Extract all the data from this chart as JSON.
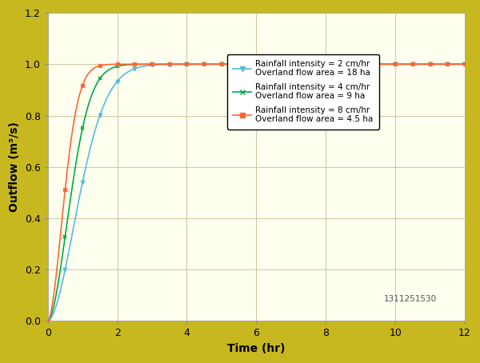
{
  "background_color": "#c8b820",
  "plot_bg_color": "#fffff0",
  "grid_color": "#c8c8a0",
  "xlabel": "Time (hr)",
  "ylabel": "Outflow (m³/s)",
  "xlim": [
    0,
    12
  ],
  "ylim": [
    0,
    1.2
  ],
  "xticks": [
    0,
    2,
    4,
    6,
    8,
    10,
    12
  ],
  "yticks": [
    0,
    0.2,
    0.4,
    0.6,
    0.8,
    1.0,
    1.2
  ],
  "watermark": "1311251530",
  "series": [
    {
      "label_line1": "Rainfall intensity = 2 cm/hr",
      "label_line2": "Overland flow area = 18 ha",
      "color": "#55bbdd",
      "marker": "v",
      "k": 1.4,
      "n": 1.8
    },
    {
      "label_line1": "Rainfall intensity = 4 cm/hr",
      "label_line2": "Overland flow area = 9 ha",
      "color": "#00aa44",
      "marker": "x",
      "k": 2.5,
      "n": 1.8
    },
    {
      "label_line1": "Rainfall intensity = 8 cm/hr",
      "label_line2": "Overland flow area = 4.5 ha",
      "color": "#ff6633",
      "marker": "s",
      "k": 4.5,
      "n": 1.8
    }
  ],
  "marker_interval": 0.5,
  "figwidth": 6.0,
  "figheight": 4.54,
  "dpi": 100
}
